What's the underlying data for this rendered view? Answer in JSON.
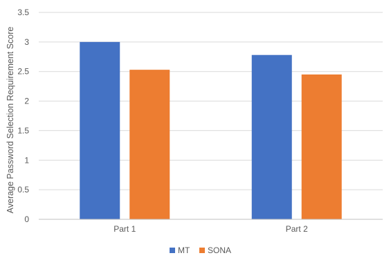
{
  "chart_data": {
    "type": "bar",
    "categories": [
      "Part 1",
      "Part 2"
    ],
    "series": [
      {
        "name": "MT",
        "values": [
          3.0,
          2.78
        ],
        "color": "#4472C4"
      },
      {
        "name": "SONA",
        "values": [
          2.53,
          2.45
        ],
        "color": "#ED7D31"
      }
    ],
    "title": "",
    "xlabel": "",
    "ylabel": "Average Password Selection Requirement Score",
    "ylim": [
      0,
      3.5
    ],
    "yticks": [
      "0",
      "0.5",
      "1",
      "1.5",
      "2",
      "2.5",
      "3",
      "3.5"
    ],
    "grid": true,
    "legend_position": "bottom"
  }
}
